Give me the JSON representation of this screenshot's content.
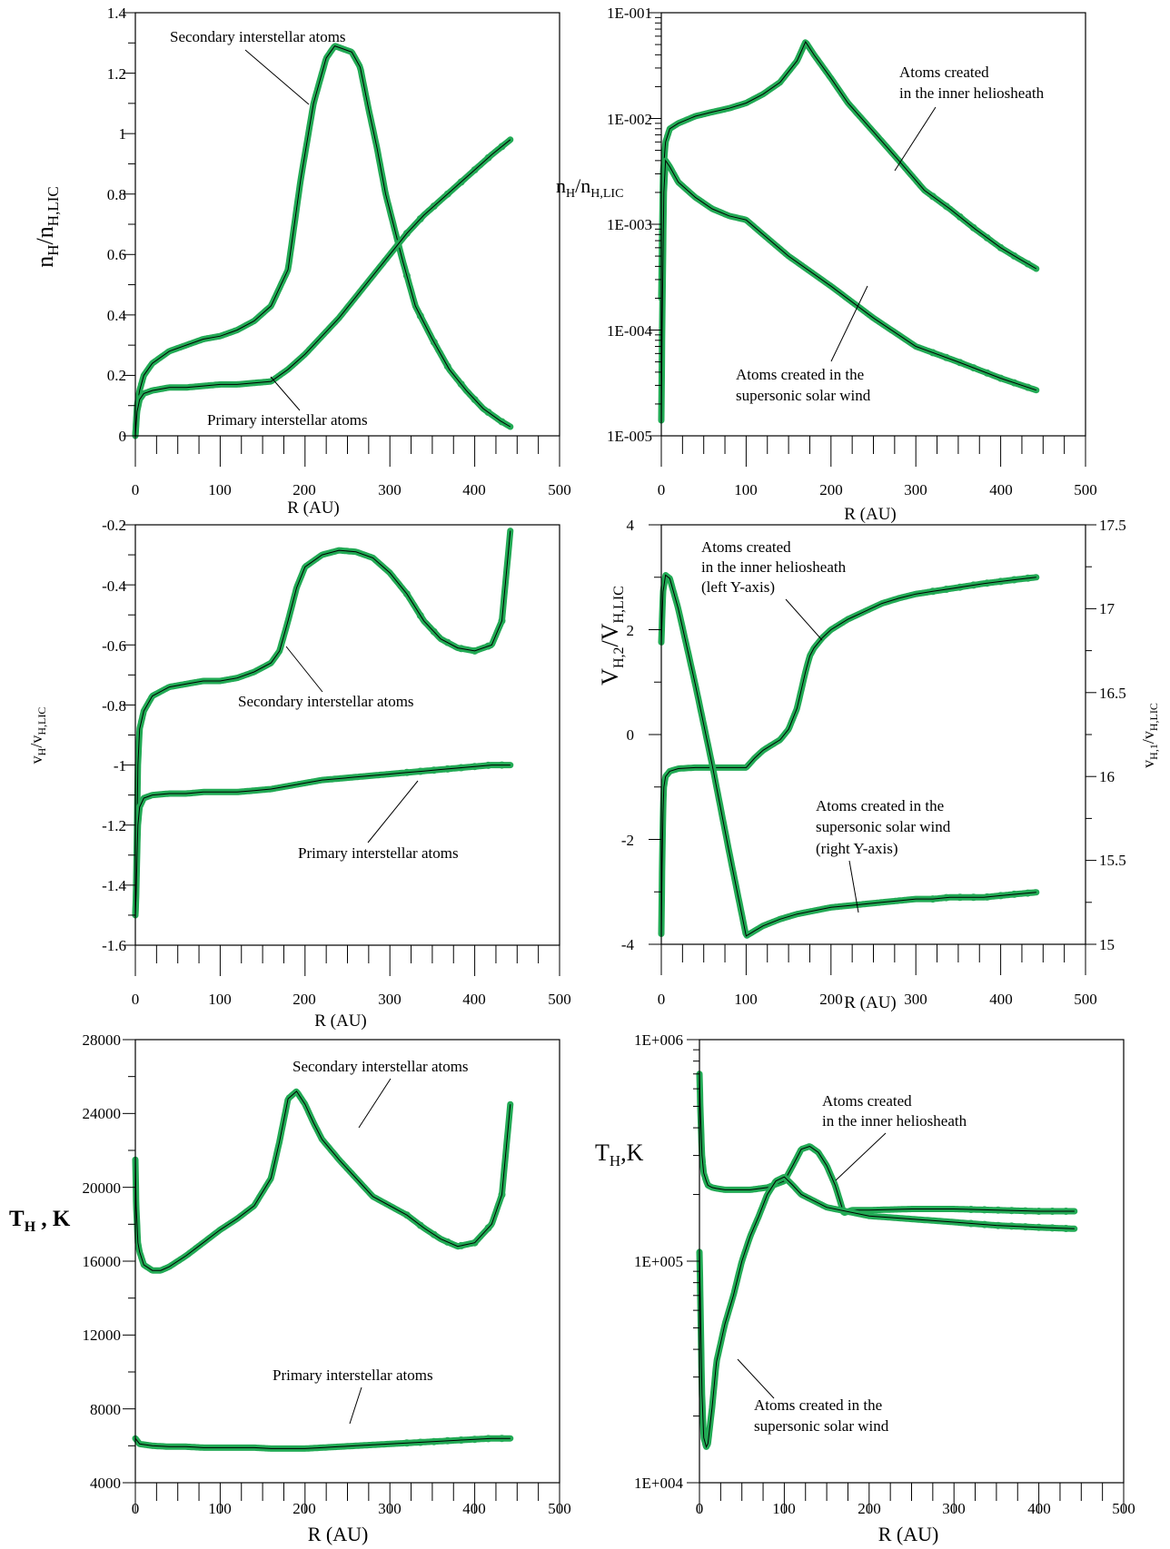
{
  "figure": {
    "marker_color": "#22aa55",
    "line_color": "#000000"
  },
  "chart_data": [
    {
      "id": "p1",
      "type": "line",
      "ylog": false,
      "xlabel": "R (AU)",
      "ylabel": "n_H/n_H,LIC",
      "xlim": [
        0,
        500
      ],
      "ylim": [
        0,
        1.4
      ],
      "xticks": [
        0,
        100,
        200,
        300,
        400,
        500
      ],
      "yticks": [
        0,
        0.2,
        0.4,
        0.6,
        0.8,
        1,
        1.2,
        1.4
      ],
      "ytick_labels": [
        "0",
        "0.2",
        "0.4",
        "0.6",
        "0.8",
        "1",
        "1.2",
        "1.4"
      ],
      "annotations": [
        "Secondary interstellar atoms",
        "Primary interstellar atoms"
      ],
      "series": [
        {
          "x": [
            0,
            2,
            5,
            10,
            20,
            40,
            60,
            80,
            100,
            120,
            140,
            160,
            180,
            195,
            210,
            225,
            235,
            245,
            255,
            265,
            275,
            285,
            295,
            305,
            315,
            330,
            350,
            370,
            390,
            410,
            430,
            442
          ],
          "y": [
            0,
            0.1,
            0.15,
            0.2,
            0.24,
            0.28,
            0.3,
            0.32,
            0.33,
            0.35,
            0.38,
            0.43,
            0.55,
            0.85,
            1.1,
            1.25,
            1.29,
            1.28,
            1.27,
            1.22,
            1.08,
            0.95,
            0.8,
            0.69,
            0.58,
            0.43,
            0.32,
            0.22,
            0.15,
            0.09,
            0.05,
            0.03
          ]
        },
        {
          "x": [
            0,
            2,
            5,
            10,
            20,
            40,
            60,
            80,
            100,
            120,
            140,
            160,
            180,
            200,
            220,
            240,
            260,
            280,
            300,
            320,
            340,
            360,
            380,
            400,
            420,
            442
          ],
          "y": [
            0,
            0.08,
            0.12,
            0.14,
            0.15,
            0.16,
            0.16,
            0.165,
            0.17,
            0.17,
            0.175,
            0.18,
            0.22,
            0.27,
            0.33,
            0.39,
            0.46,
            0.53,
            0.6,
            0.67,
            0.73,
            0.78,
            0.83,
            0.88,
            0.93,
            0.98
          ]
        }
      ]
    },
    {
      "id": "p2",
      "type": "line",
      "ylog": true,
      "xlabel": "R (AU)",
      "ylabel": "n_H/n_H,LIC",
      "xlim": [
        0,
        500
      ],
      "ylim": [
        1e-05,
        0.1
      ],
      "xticks": [
        0,
        100,
        200,
        300,
        400,
        500
      ],
      "yticks": [
        1e-05,
        0.0001,
        0.001,
        0.01,
        0.1
      ],
      "ytick_labels": [
        "1E-005",
        "1E-004",
        "1E-003",
        "1E-002",
        "1E-001"
      ],
      "annotations": [
        "Atoms created",
        "in the inner heliosheath",
        "Atoms created in the",
        "supersonic solar wind"
      ],
      "series": [
        {
          "x": [
            0,
            2,
            5,
            10,
            20,
            40,
            60,
            80,
            100,
            120,
            140,
            160,
            170,
            180,
            200,
            220,
            250,
            280,
            310,
            340,
            370,
            400,
            420,
            442
          ],
          "y": [
            0.0002,
            0.003,
            0.006,
            0.008,
            0.009,
            0.0105,
            0.0115,
            0.0125,
            0.014,
            0.017,
            0.022,
            0.035,
            0.053,
            0.04,
            0.024,
            0.014,
            0.0075,
            0.004,
            0.0021,
            0.0014,
            0.0009,
            0.0006,
            0.00048,
            0.00038
          ]
        },
        {
          "x": [
            0,
            1,
            2,
            3,
            5,
            10,
            20,
            40,
            60,
            80,
            100,
            120,
            150,
            200,
            250,
            300,
            350,
            400,
            442
          ],
          "y": [
            1.4e-05,
            0.0001,
            0.0005,
            0.002,
            0.004,
            0.0035,
            0.0025,
            0.0018,
            0.0014,
            0.0012,
            0.0011,
            0.0008,
            0.0005,
            0.00026,
            0.00013,
            7e-05,
            5e-05,
            3.5e-05,
            2.7e-05
          ]
        }
      ]
    },
    {
      "id": "p3",
      "type": "line",
      "ylog": false,
      "xlabel": "R (AU)",
      "ylabel": "v_H/v_H,LIC",
      "xlim": [
        0,
        500
      ],
      "ylim": [
        -1.6,
        -0.2
      ],
      "xticks": [
        0,
        100,
        200,
        300,
        400,
        500
      ],
      "yticks": [
        -1.6,
        -1.4,
        -1.2,
        -1,
        -0.8,
        -0.6,
        -0.4,
        -0.2
      ],
      "ytick_labels": [
        "-1.6",
        "-1.4",
        "-1.2",
        "-1",
        "-0.8",
        "-0.6",
        "-0.4",
        "-0.2"
      ],
      "annotations": [
        "Secondary interstellar atoms",
        "Primary interstellar atoms"
      ],
      "series": [
        {
          "x": [
            0,
            1,
            2,
            3,
            5,
            10,
            20,
            40,
            60,
            80,
            100,
            120,
            140,
            160,
            170,
            180,
            190,
            200,
            220,
            240,
            260,
            280,
            300,
            320,
            340,
            360,
            380,
            400,
            420,
            432,
            442
          ],
          "y": [
            -1.5,
            -1.4,
            -1.2,
            -1.0,
            -0.88,
            -0.82,
            -0.77,
            -0.74,
            -0.73,
            -0.72,
            -0.72,
            -0.71,
            -0.69,
            -0.66,
            -0.62,
            -0.52,
            -0.41,
            -0.34,
            -0.3,
            -0.285,
            -0.29,
            -0.31,
            -0.36,
            -0.43,
            -0.52,
            -0.58,
            -0.61,
            -0.62,
            -0.6,
            -0.52,
            -0.22
          ]
        },
        {
          "x": [
            0,
            1,
            2,
            3,
            5,
            10,
            20,
            40,
            60,
            80,
            100,
            120,
            140,
            160,
            180,
            200,
            220,
            240,
            260,
            280,
            300,
            320,
            340,
            360,
            380,
            400,
            420,
            442
          ],
          "y": [
            -1.5,
            -1.43,
            -1.3,
            -1.2,
            -1.14,
            -1.11,
            -1.1,
            -1.095,
            -1.095,
            -1.09,
            -1.09,
            -1.09,
            -1.085,
            -1.08,
            -1.07,
            -1.06,
            -1.05,
            -1.045,
            -1.04,
            -1.035,
            -1.03,
            -1.025,
            -1.02,
            -1.015,
            -1.01,
            -1.005,
            -1.0,
            -1.0
          ]
        }
      ]
    },
    {
      "id": "p4",
      "type": "line",
      "ylog": false,
      "xlabel": "R (AU)",
      "ylabel": "V_H,2/V_H,LIC",
      "y2label": "v_H,1/v_H,LIC",
      "xlim": [
        0,
        500
      ],
      "ylim": [
        -4,
        4
      ],
      "y2lim": [
        15,
        17.5
      ],
      "xticks": [
        0,
        100,
        200,
        300,
        400,
        500
      ],
      "yticks": [
        -4,
        -2,
        0,
        2,
        4
      ],
      "ytick_labels": [
        "-4",
        "-2",
        "0",
        "2",
        "4"
      ],
      "y2ticks": [
        15,
        15.5,
        16,
        16.5,
        17,
        17.5
      ],
      "y2tick_labels": [
        "15",
        "15.5",
        "16",
        "16.5",
        "17",
        "17.5"
      ],
      "annotations": [
        "Atoms created",
        "in the inner heliosheath",
        "(left Y-axis)",
        "Atoms created in the",
        "supersonic solar wind",
        "(right Y-axis)"
      ],
      "series": [
        {
          "axis": "left",
          "x": [
            0,
            1,
            2,
            3,
            5,
            10,
            20,
            40,
            60,
            80,
            100,
            110,
            120,
            140,
            150,
            160,
            170,
            175,
            180,
            190,
            200,
            220,
            240,
            260,
            280,
            300,
            320,
            340,
            360,
            380,
            400,
            420,
            442
          ],
          "y": [
            -3.8,
            -2.5,
            -1.5,
            -1.0,
            -0.8,
            -0.7,
            -0.65,
            -0.63,
            -0.63,
            -0.63,
            -0.63,
            -0.45,
            -0.3,
            -0.1,
            0.1,
            0.5,
            1.2,
            1.5,
            1.65,
            1.85,
            2.0,
            2.2,
            2.35,
            2.5,
            2.6,
            2.68,
            2.73,
            2.78,
            2.83,
            2.88,
            2.92,
            2.96,
            3.0
          ]
        },
        {
          "axis": "right",
          "x": [
            0,
            2,
            5,
            10,
            20,
            40,
            60,
            80,
            100,
            110,
            120,
            140,
            160,
            180,
            200,
            220,
            240,
            260,
            280,
            300,
            320,
            340,
            360,
            380,
            400,
            420,
            442
          ],
          "y": [
            16.8,
            17.1,
            17.2,
            17.18,
            17.0,
            16.55,
            16.07,
            15.55,
            15.05,
            15.08,
            15.11,
            15.15,
            15.18,
            15.2,
            15.22,
            15.23,
            15.24,
            15.25,
            15.26,
            15.27,
            15.27,
            15.28,
            15.28,
            15.28,
            15.29,
            15.3,
            15.31
          ]
        }
      ]
    },
    {
      "id": "p5",
      "type": "line",
      "ylog": false,
      "xlabel": "R (AU)",
      "ylabel": "T_H , K",
      "xlim": [
        0,
        500
      ],
      "ylim": [
        4000,
        28000
      ],
      "xticks": [
        0,
        100,
        200,
        300,
        400,
        500
      ],
      "yticks": [
        4000,
        8000,
        12000,
        16000,
        20000,
        24000,
        28000
      ],
      "ytick_labels": [
        "4000",
        "8000",
        "12000",
        "16000",
        "20000",
        "24000",
        "28000"
      ],
      "annotations": [
        "Secondary interstellar atoms",
        "Primary interstellar atoms"
      ],
      "series": [
        {
          "x": [
            0,
            1,
            2,
            3,
            5,
            10,
            20,
            30,
            40,
            60,
            80,
            100,
            120,
            140,
            160,
            170,
            180,
            190,
            200,
            210,
            220,
            240,
            260,
            280,
            300,
            320,
            340,
            360,
            380,
            400,
            420,
            432,
            442
          ],
          "y": [
            21500,
            19000,
            18000,
            17000,
            16500,
            15800,
            15500,
            15500,
            15700,
            16300,
            17000,
            17700,
            18300,
            19000,
            20500,
            22500,
            24800,
            25200,
            24500,
            23500,
            22600,
            21500,
            20500,
            19500,
            19000,
            18500,
            17800,
            17200,
            16800,
            17000,
            18000,
            19600,
            24500
          ]
        },
        {
          "x": [
            0,
            5,
            20,
            40,
            60,
            80,
            100,
            120,
            140,
            160,
            180,
            200,
            220,
            240,
            260,
            280,
            300,
            320,
            340,
            360,
            380,
            400,
            420,
            442
          ],
          "y": [
            6400,
            6100,
            6000,
            5950,
            5950,
            5900,
            5900,
            5900,
            5900,
            5850,
            5850,
            5850,
            5900,
            5950,
            6000,
            6050,
            6100,
            6150,
            6200,
            6250,
            6300,
            6350,
            6400,
            6400
          ]
        }
      ]
    },
    {
      "id": "p6",
      "type": "line",
      "ylog": true,
      "xlabel": "R (AU)",
      "ylabel": "T_H,K",
      "xlim": [
        0,
        500
      ],
      "ylim": [
        10000,
        1000000
      ],
      "xticks": [
        0,
        100,
        200,
        300,
        400,
        500
      ],
      "yticks": [
        10000,
        100000,
        1000000
      ],
      "ytick_labels": [
        "1E+004",
        "1E+005",
        "1E+006"
      ],
      "annotations": [
        "Atoms created",
        "in the inner heliosheath",
        "Atoms created in the",
        "supersonic solar wind"
      ],
      "series": [
        {
          "x": [
            0,
            1,
            2,
            3,
            5,
            8,
            10,
            15,
            20,
            30,
            40,
            60,
            80,
            100,
            110,
            120,
            130,
            140,
            150,
            160,
            170,
            180,
            200,
            250,
            300,
            350,
            400,
            442
          ],
          "y": [
            700000,
            500000,
            380000,
            300000,
            250000,
            230000,
            220000,
            215000,
            213000,
            210000,
            210000,
            210000,
            215000,
            230000,
            270000,
            320000,
            330000,
            310000,
            270000,
            220000,
            165000,
            170000,
            170000,
            172000,
            172000,
            170000,
            168000,
            168000
          ]
        },
        {
          "x": [
            0,
            1,
            2,
            3,
            5,
            8,
            10,
            15,
            20,
            30,
            40,
            50,
            60,
            70,
            80,
            90,
            100,
            110,
            120,
            150,
            200,
            250,
            300,
            350,
            400,
            442
          ],
          "y": [
            110000,
            70000,
            40000,
            25000,
            16000,
            14500,
            15000,
            22000,
            35000,
            52000,
            70000,
            100000,
            130000,
            160000,
            200000,
            230000,
            240000,
            220000,
            200000,
            175000,
            160000,
            155000,
            150000,
            145000,
            142000,
            140000
          ]
        }
      ]
    }
  ]
}
